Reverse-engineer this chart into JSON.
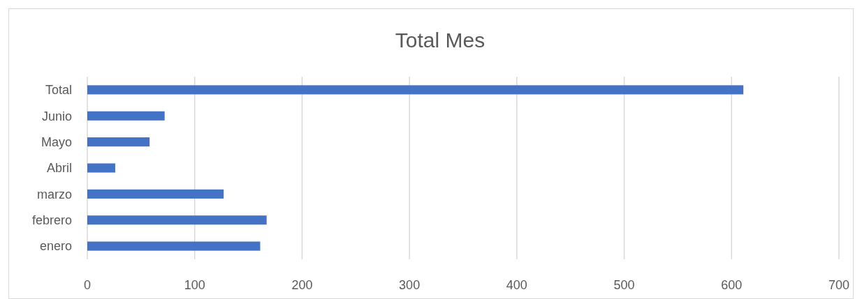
{
  "chart_data": {
    "type": "bar",
    "orientation": "horizontal",
    "title": "Total Mes",
    "categories": [
      "Total",
      "Junio",
      "Mayo",
      "Abril",
      "marzo",
      "febrero",
      "enero"
    ],
    "values": [
      611,
      72,
      58,
      26,
      127,
      167,
      161
    ],
    "color": "#4472c4",
    "xlim": [
      0,
      700
    ],
    "xticks": [
      0,
      100,
      200,
      300,
      400,
      500,
      600,
      700
    ],
    "grid": "x"
  }
}
